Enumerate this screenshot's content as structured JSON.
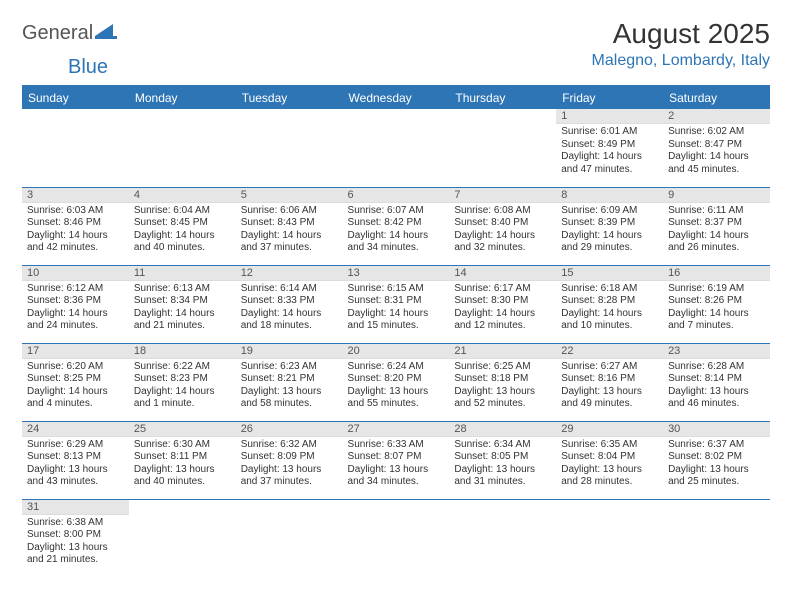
{
  "brand": {
    "part1": "General",
    "part2": "Blue"
  },
  "title": "August 2025",
  "location": "Malegno, Lombardy, Italy",
  "colors": {
    "accent": "#2e75b6",
    "header_text": "#ffffff",
    "daynum_bg": "#e6e6e6",
    "body_text": "#333333",
    "muted_text": "#555555",
    "background": "#ffffff"
  },
  "typography": {
    "title_fontsize": 28,
    "location_fontsize": 16,
    "header_fontsize": 12,
    "daynum_fontsize": 11,
    "body_fontsize": 10
  },
  "day_headers": [
    "Sunday",
    "Monday",
    "Tuesday",
    "Wednesday",
    "Thursday",
    "Friday",
    "Saturday"
  ],
  "weeks": [
    [
      {
        "n": "",
        "sr": "",
        "ss": "",
        "dl": ""
      },
      {
        "n": "",
        "sr": "",
        "ss": "",
        "dl": ""
      },
      {
        "n": "",
        "sr": "",
        "ss": "",
        "dl": ""
      },
      {
        "n": "",
        "sr": "",
        "ss": "",
        "dl": ""
      },
      {
        "n": "",
        "sr": "",
        "ss": "",
        "dl": ""
      },
      {
        "n": "1",
        "sr": "Sunrise: 6:01 AM",
        "ss": "Sunset: 8:49 PM",
        "dl": "Daylight: 14 hours and 47 minutes."
      },
      {
        "n": "2",
        "sr": "Sunrise: 6:02 AM",
        "ss": "Sunset: 8:47 PM",
        "dl": "Daylight: 14 hours and 45 minutes."
      }
    ],
    [
      {
        "n": "3",
        "sr": "Sunrise: 6:03 AM",
        "ss": "Sunset: 8:46 PM",
        "dl": "Daylight: 14 hours and 42 minutes."
      },
      {
        "n": "4",
        "sr": "Sunrise: 6:04 AM",
        "ss": "Sunset: 8:45 PM",
        "dl": "Daylight: 14 hours and 40 minutes."
      },
      {
        "n": "5",
        "sr": "Sunrise: 6:06 AM",
        "ss": "Sunset: 8:43 PM",
        "dl": "Daylight: 14 hours and 37 minutes."
      },
      {
        "n": "6",
        "sr": "Sunrise: 6:07 AM",
        "ss": "Sunset: 8:42 PM",
        "dl": "Daylight: 14 hours and 34 minutes."
      },
      {
        "n": "7",
        "sr": "Sunrise: 6:08 AM",
        "ss": "Sunset: 8:40 PM",
        "dl": "Daylight: 14 hours and 32 minutes."
      },
      {
        "n": "8",
        "sr": "Sunrise: 6:09 AM",
        "ss": "Sunset: 8:39 PM",
        "dl": "Daylight: 14 hours and 29 minutes."
      },
      {
        "n": "9",
        "sr": "Sunrise: 6:11 AM",
        "ss": "Sunset: 8:37 PM",
        "dl": "Daylight: 14 hours and 26 minutes."
      }
    ],
    [
      {
        "n": "10",
        "sr": "Sunrise: 6:12 AM",
        "ss": "Sunset: 8:36 PM",
        "dl": "Daylight: 14 hours and 24 minutes."
      },
      {
        "n": "11",
        "sr": "Sunrise: 6:13 AM",
        "ss": "Sunset: 8:34 PM",
        "dl": "Daylight: 14 hours and 21 minutes."
      },
      {
        "n": "12",
        "sr": "Sunrise: 6:14 AM",
        "ss": "Sunset: 8:33 PM",
        "dl": "Daylight: 14 hours and 18 minutes."
      },
      {
        "n": "13",
        "sr": "Sunrise: 6:15 AM",
        "ss": "Sunset: 8:31 PM",
        "dl": "Daylight: 14 hours and 15 minutes."
      },
      {
        "n": "14",
        "sr": "Sunrise: 6:17 AM",
        "ss": "Sunset: 8:30 PM",
        "dl": "Daylight: 14 hours and 12 minutes."
      },
      {
        "n": "15",
        "sr": "Sunrise: 6:18 AM",
        "ss": "Sunset: 8:28 PM",
        "dl": "Daylight: 14 hours and 10 minutes."
      },
      {
        "n": "16",
        "sr": "Sunrise: 6:19 AM",
        "ss": "Sunset: 8:26 PM",
        "dl": "Daylight: 14 hours and 7 minutes."
      }
    ],
    [
      {
        "n": "17",
        "sr": "Sunrise: 6:20 AM",
        "ss": "Sunset: 8:25 PM",
        "dl": "Daylight: 14 hours and 4 minutes."
      },
      {
        "n": "18",
        "sr": "Sunrise: 6:22 AM",
        "ss": "Sunset: 8:23 PM",
        "dl": "Daylight: 14 hours and 1 minute."
      },
      {
        "n": "19",
        "sr": "Sunrise: 6:23 AM",
        "ss": "Sunset: 8:21 PM",
        "dl": "Daylight: 13 hours and 58 minutes."
      },
      {
        "n": "20",
        "sr": "Sunrise: 6:24 AM",
        "ss": "Sunset: 8:20 PM",
        "dl": "Daylight: 13 hours and 55 minutes."
      },
      {
        "n": "21",
        "sr": "Sunrise: 6:25 AM",
        "ss": "Sunset: 8:18 PM",
        "dl": "Daylight: 13 hours and 52 minutes."
      },
      {
        "n": "22",
        "sr": "Sunrise: 6:27 AM",
        "ss": "Sunset: 8:16 PM",
        "dl": "Daylight: 13 hours and 49 minutes."
      },
      {
        "n": "23",
        "sr": "Sunrise: 6:28 AM",
        "ss": "Sunset: 8:14 PM",
        "dl": "Daylight: 13 hours and 46 minutes."
      }
    ],
    [
      {
        "n": "24",
        "sr": "Sunrise: 6:29 AM",
        "ss": "Sunset: 8:13 PM",
        "dl": "Daylight: 13 hours and 43 minutes."
      },
      {
        "n": "25",
        "sr": "Sunrise: 6:30 AM",
        "ss": "Sunset: 8:11 PM",
        "dl": "Daylight: 13 hours and 40 minutes."
      },
      {
        "n": "26",
        "sr": "Sunrise: 6:32 AM",
        "ss": "Sunset: 8:09 PM",
        "dl": "Daylight: 13 hours and 37 minutes."
      },
      {
        "n": "27",
        "sr": "Sunrise: 6:33 AM",
        "ss": "Sunset: 8:07 PM",
        "dl": "Daylight: 13 hours and 34 minutes."
      },
      {
        "n": "28",
        "sr": "Sunrise: 6:34 AM",
        "ss": "Sunset: 8:05 PM",
        "dl": "Daylight: 13 hours and 31 minutes."
      },
      {
        "n": "29",
        "sr": "Sunrise: 6:35 AM",
        "ss": "Sunset: 8:04 PM",
        "dl": "Daylight: 13 hours and 28 minutes."
      },
      {
        "n": "30",
        "sr": "Sunrise: 6:37 AM",
        "ss": "Sunset: 8:02 PM",
        "dl": "Daylight: 13 hours and 25 minutes."
      }
    ],
    [
      {
        "n": "31",
        "sr": "Sunrise: 6:38 AM",
        "ss": "Sunset: 8:00 PM",
        "dl": "Daylight: 13 hours and 21 minutes."
      },
      {
        "n": "",
        "sr": "",
        "ss": "",
        "dl": ""
      },
      {
        "n": "",
        "sr": "",
        "ss": "",
        "dl": ""
      },
      {
        "n": "",
        "sr": "",
        "ss": "",
        "dl": ""
      },
      {
        "n": "",
        "sr": "",
        "ss": "",
        "dl": ""
      },
      {
        "n": "",
        "sr": "",
        "ss": "",
        "dl": ""
      },
      {
        "n": "",
        "sr": "",
        "ss": "",
        "dl": ""
      }
    ]
  ]
}
